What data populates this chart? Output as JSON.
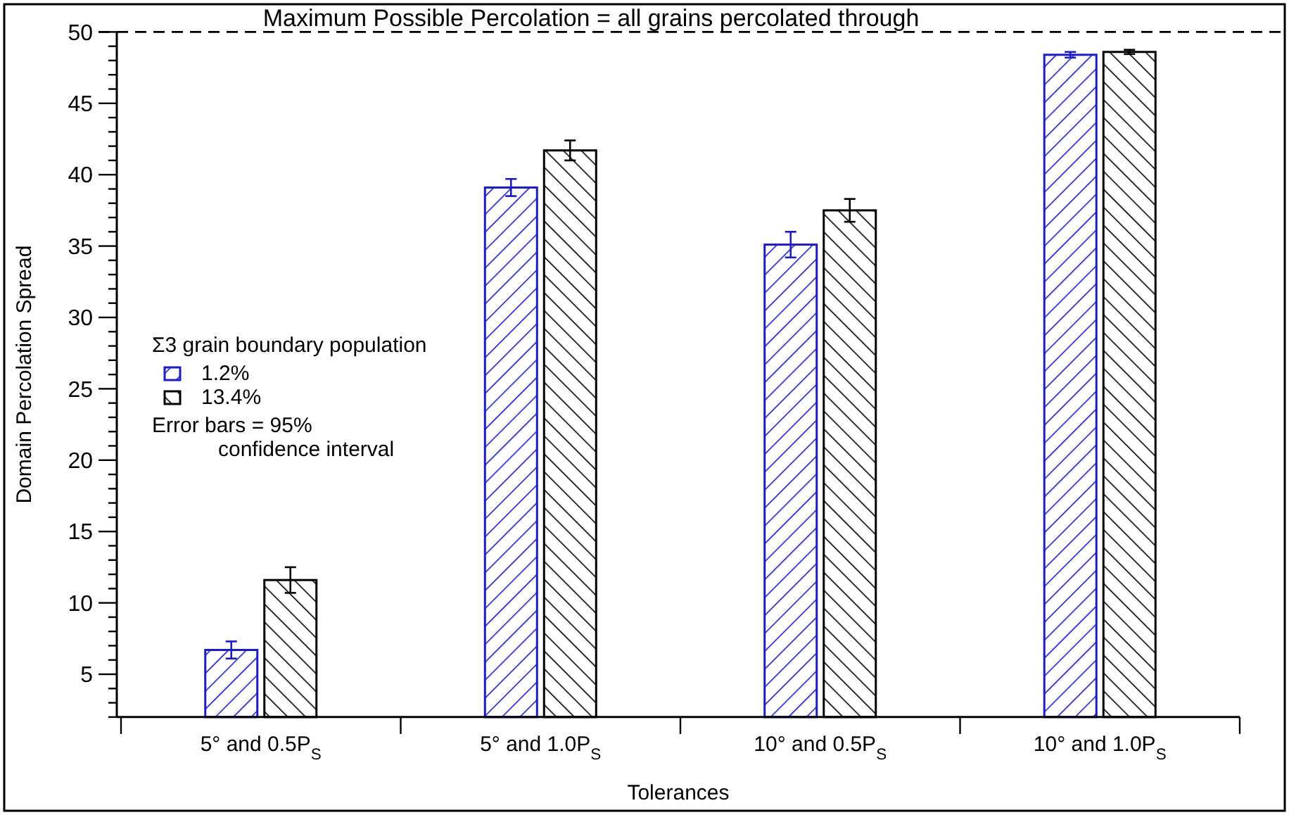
{
  "chart_data": {
    "type": "bar",
    "xlabel": "Tolerances",
    "ylabel": "Domain Percolation Spread",
    "legend_title": "Σ3 grain boundary population",
    "categories": [
      "5° and 0.5P$_{S}$",
      "5° and 1.0P$_{S}$",
      "10° and 0.5P$_{S}$",
      "10° and 1.0P$_{S}$"
    ],
    "series": [
      {
        "name": "1.2%",
        "color": "#1c1cc0",
        "values": [
          6.7,
          39.1,
          35.1,
          48.4
        ],
        "errors": [
          0.6,
          0.6,
          0.9,
          0.2
        ]
      },
      {
        "name": "13.4%",
        "color": "#000000",
        "values": [
          11.6,
          41.7,
          37.5,
          48.6
        ],
        "errors": [
          0.9,
          0.7,
          0.8,
          0.15
        ]
      }
    ],
    "ylim": [
      2,
      50
    ],
    "yticks": [
      {
        "value": 2,
        "label": null
      },
      {
        "value": 3,
        "label": null
      },
      {
        "value": 4,
        "label": null
      },
      5,
      {
        "value": 6,
        "label": null
      },
      {
        "value": 7,
        "label": null
      },
      {
        "value": 8,
        "label": null
      },
      {
        "value": 9,
        "label": null
      },
      10,
      {
        "value": 11,
        "label": null
      },
      {
        "value": 12,
        "label": null
      },
      {
        "value": 13,
        "label": null
      },
      {
        "value": 14,
        "label": null
      },
      15,
      {
        "value": 16,
        "label": null
      },
      {
        "value": 17,
        "label": null
      },
      {
        "value": 18,
        "label": null
      },
      {
        "value": 19,
        "label": null
      },
      20,
      {
        "value": 21,
        "label": null
      },
      {
        "value": 22,
        "label": null
      },
      {
        "value": 23,
        "label": null
      },
      {
        "value": 24,
        "label": null
      },
      25,
      {
        "value": 26,
        "label": null
      },
      {
        "value": 27,
        "label": null
      },
      {
        "value": 28,
        "label": null
      },
      {
        "value": 29,
        "label": null
      },
      30,
      {
        "value": 31,
        "label": null
      },
      {
        "value": 32,
        "label": null
      },
      {
        "value": 33,
        "label": null
      },
      {
        "value": 34,
        "label": null
      },
      35,
      {
        "value": 36,
        "label": null
      },
      {
        "value": 37,
        "label": null
      },
      {
        "value": 38,
        "label": null
      },
      {
        "value": 39,
        "label": null
      },
      40,
      {
        "value": 41,
        "label": null
      },
      {
        "value": 42,
        "label": null
      },
      {
        "value": 43,
        "label": null
      },
      {
        "value": 44,
        "label": null
      },
      45,
      {
        "value": 46,
        "label": null
      },
      {
        "value": 47,
        "label": null
      },
      {
        "value": 48,
        "label": null
      },
      {
        "value": 49,
        "label": null
      },
      50
    ],
    "ref_lines": [
      {
        "axis": "y",
        "value": 50,
        "label": "Maximum Possible Percolation = all grains percolated through",
        "line_style": "dashed",
        "color": "#000000"
      }
    ],
    "annotations": [
      "Error bars = 95%\nconfidence interval"
    ],
    "legend": "left",
    "grid": false
  }
}
